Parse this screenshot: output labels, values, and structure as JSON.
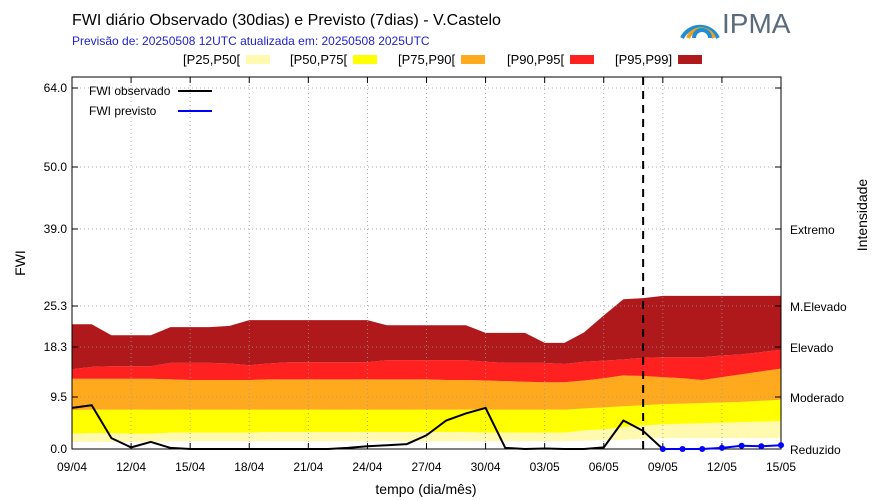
{
  "header": {
    "title": "FWI diário Observado (30dias) e Previsto (7dias) - V.Castelo",
    "subtitle": "Previsão de: 20250508 12UTC   atualizada em: 20250508 2025UTC",
    "logo_text": "IPMA",
    "logo_icon": "ipma-logo-icon"
  },
  "band_legend": [
    {
      "label": "[P25,P50[",
      "color": "#fffaaf"
    },
    {
      "label": "[P50,P75[",
      "color": "#ffff00"
    },
    {
      "label": "[P75,P90[",
      "color": "#ffaa1e"
    },
    {
      "label": "[P90,P95[",
      "color": "#ff2020"
    },
    {
      "label": "[P95,P99]",
      "color": "#b0191c"
    }
  ],
  "chart_data": {
    "type": "area",
    "title": "FWI diário Observado (30dias) e Previsto (7dias) - V.Castelo",
    "xlabel": "tempo (dia/mês)",
    "ylabel": "FWI",
    "y2label": "Intensidade",
    "yticks": [
      0.0,
      9.5,
      18.3,
      25.3,
      39.0,
      50.0,
      64.0
    ],
    "ytick_labels": [
      "0.0",
      "9.5",
      "18.3",
      "25.3",
      "39.0",
      "50.0",
      "64.0"
    ],
    "intensity_classes": [
      {
        "label": "Reduzido",
        "value": 0.0
      },
      {
        "label": "Moderado",
        "value": 9.5
      },
      {
        "label": "Elevado",
        "value": 18.3
      },
      {
        "label": "M.Elevado",
        "value": 25.3
      },
      {
        "label": "Extremo",
        "value": 39.0
      }
    ],
    "x_start": "09/04",
    "x_end": "15/05",
    "xtick_labels": [
      "09/04",
      "12/04",
      "15/04",
      "18/04",
      "21/04",
      "24/04",
      "27/04",
      "30/04",
      "03/05",
      "06/05",
      "09/05",
      "12/05",
      "15/05"
    ],
    "xtick_positions": [
      0,
      3,
      6,
      9,
      12,
      15,
      18,
      21,
      24,
      27,
      30,
      33,
      36
    ],
    "forecast_start_x": 29,
    "grid": true,
    "legend": {
      "observed": {
        "label": "FWI observado",
        "color": "#000000"
      },
      "forecast": {
        "label": "FWI previsto",
        "color": "#0000ff"
      },
      "placement": "top-left"
    },
    "percentile_bands": {
      "x": [
        0,
        1,
        2,
        3,
        4,
        5,
        6,
        7,
        8,
        9,
        10,
        11,
        12,
        13,
        14,
        15,
        16,
        17,
        18,
        19,
        20,
        21,
        22,
        23,
        24,
        25,
        26,
        27,
        28,
        29,
        30,
        31,
        32,
        33,
        34,
        35,
        36
      ],
      "P25": [
        1.3,
        1.3,
        1.3,
        1.3,
        1.3,
        1.4,
        1.4,
        1.4,
        1.4,
        1.4,
        1.4,
        1.4,
        1.4,
        1.4,
        1.4,
        1.4,
        1.4,
        1.4,
        1.4,
        1.4,
        1.4,
        1.4,
        1.4,
        1.4,
        1.4,
        1.4,
        1.5,
        1.6,
        1.7,
        1.9,
        2.0,
        2.0,
        2.0,
        2.0,
        2.0,
        2.0,
        2.0
      ],
      "P50": [
        2.8,
        2.9,
        2.9,
        2.8,
        2.8,
        3.0,
        3.0,
        3.0,
        3.0,
        3.0,
        3.1,
        3.1,
        3.1,
        3.1,
        3.1,
        3.1,
        3.1,
        3.1,
        3.1,
        3.1,
        3.1,
        3.0,
        3.0,
        3.0,
        3.0,
        3.0,
        3.4,
        3.6,
        4.0,
        4.3,
        4.5,
        4.6,
        4.7,
        4.8,
        4.9,
        5.0,
        5.1
      ],
      "P75": [
        7.1,
        7.2,
        7.2,
        7.2,
        7.2,
        7.2,
        7.2,
        7.2,
        7.2,
        7.2,
        7.2,
        7.2,
        7.2,
        7.2,
        7.2,
        7.2,
        7.2,
        7.2,
        7.2,
        7.2,
        7.2,
        7.2,
        7.2,
        7.2,
        7.2,
        7.2,
        7.4,
        7.6,
        7.8,
        8.0,
        8.2,
        8.3,
        8.4,
        8.5,
        8.6,
        8.8,
        9.0
      ],
      "P90": [
        12.7,
        12.7,
        12.7,
        12.7,
        12.7,
        12.6,
        12.5,
        12.5,
        12.5,
        12.5,
        12.6,
        12.6,
        12.6,
        12.6,
        12.6,
        12.6,
        12.6,
        12.6,
        12.6,
        12.5,
        12.5,
        12.4,
        12.3,
        12.2,
        12.1,
        12.1,
        12.4,
        12.8,
        13.3,
        13.2,
        13.0,
        12.8,
        12.5,
        13.0,
        13.5,
        14.0,
        14.5
      ],
      "P95": [
        14.4,
        14.8,
        14.9,
        14.9,
        14.9,
        15.5,
        15.5,
        15.5,
        15.4,
        15.1,
        15.4,
        15.6,
        15.6,
        15.6,
        15.6,
        15.6,
        16.0,
        16.0,
        16.0,
        16.0,
        16.0,
        15.7,
        15.5,
        15.5,
        15.5,
        15.3,
        15.7,
        15.9,
        16.1,
        16.4,
        16.5,
        16.5,
        16.5,
        16.8,
        17.0,
        17.4,
        17.8
      ],
      "P99": [
        22.2,
        22.2,
        20.3,
        20.3,
        20.3,
        21.7,
        21.7,
        21.7,
        21.9,
        22.9,
        22.9,
        22.9,
        22.9,
        22.9,
        22.9,
        22.9,
        22.0,
        22.0,
        22.0,
        22.0,
        22.0,
        20.7,
        20.7,
        20.7,
        19.0,
        19.0,
        20.8,
        23.7,
        26.5,
        26.7,
        27.1,
        27.1,
        27.1,
        27.1,
        27.1,
        27.1,
        27.1
      ]
    },
    "observed": {
      "x": [
        0,
        1,
        2,
        3,
        4,
        5,
        6,
        7,
        8,
        9,
        10,
        11,
        12,
        13,
        14,
        15,
        16,
        17,
        18,
        19,
        20,
        21,
        22,
        23,
        24,
        25,
        26,
        27,
        28,
        29,
        30
      ],
      "y": [
        7.5,
        8.0,
        2.0,
        0.3,
        1.3,
        0.2,
        0.0,
        0.0,
        0.0,
        0.0,
        0.0,
        0.0,
        0.0,
        0.0,
        0.2,
        0.5,
        0.7,
        0.9,
        2.5,
        5.2,
        6.5,
        7.5,
        0.2,
        0.0,
        0.1,
        0.0,
        0.0,
        0.3,
        5.2,
        3.3,
        0.0
      ]
    },
    "forecast": {
      "x": [
        30,
        31,
        32,
        33,
        34,
        35,
        36
      ],
      "y": [
        0.0,
        0.0,
        0.0,
        0.2,
        0.6,
        0.5,
        0.7
      ]
    }
  }
}
